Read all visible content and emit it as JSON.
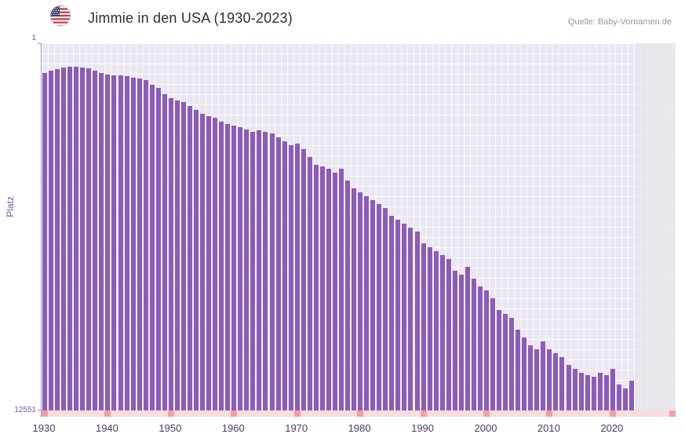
{
  "header": {
    "title": "Jimmie in den USA (1930-2023)",
    "source": "Quelle: Baby-Vornamen.de",
    "flag_icon": "us-flag-icon"
  },
  "chart_data": {
    "type": "bar",
    "title": "Jimmie in den USA (1930-2023)",
    "xlabel": "",
    "ylabel": "Platz",
    "legend": null,
    "grid": true,
    "y_axis": {
      "min": 1,
      "max": 12551,
      "min_label": "1",
      "max_label": "12551",
      "inverted": true,
      "scale": "sqrt",
      "note": "Rang 1 oben, Rang 12551 unten; hoehere Balken = besserer Platz"
    },
    "x_ticks": [
      1930,
      1940,
      1950,
      1960,
      1970,
      1980,
      1990,
      2000,
      2010,
      2020
    ],
    "categories": [
      1930,
      1931,
      1932,
      1933,
      1934,
      1935,
      1936,
      1937,
      1938,
      1939,
      1940,
      1941,
      1942,
      1943,
      1944,
      1945,
      1946,
      1947,
      1948,
      1949,
      1950,
      1951,
      1952,
      1953,
      1954,
      1955,
      1956,
      1957,
      1958,
      1959,
      1960,
      1961,
      1962,
      1963,
      1964,
      1965,
      1966,
      1967,
      1968,
      1969,
      1970,
      1971,
      1972,
      1973,
      1974,
      1975,
      1976,
      1977,
      1978,
      1979,
      1980,
      1981,
      1982,
      1983,
      1984,
      1985,
      1986,
      1987,
      1988,
      1989,
      1990,
      1991,
      1992,
      1993,
      1994,
      1995,
      1996,
      1997,
      1998,
      1999,
      2000,
      2001,
      2002,
      2003,
      2004,
      2005,
      2006,
      2007,
      2008,
      2009,
      2010,
      2011,
      2012,
      2013,
      2014,
      2015,
      2016,
      2017,
      2018,
      2019,
      2020,
      2021,
      2022,
      2023
    ],
    "values": [
      83,
      70,
      62,
      55,
      52,
      52,
      55,
      59,
      70,
      83,
      92,
      96,
      96,
      101,
      111,
      116,
      127,
      161,
      186,
      242,
      281,
      305,
      322,
      367,
      414,
      464,
      496,
      517,
      573,
      608,
      632,
      656,
      693,
      732,
      706,
      732,
      758,
      825,
      895,
      969,
      939,
      1045,
      1205,
      1377,
      1413,
      1467,
      1560,
      1467,
      1755,
      1961,
      2069,
      2179,
      2292,
      2409,
      2527,
      2774,
      2901,
      3032,
      3165,
      3301,
      3727,
      3874,
      4024,
      4177,
      4333,
      4820,
      4987,
      4655,
      5157,
      5507,
      5686,
      6053,
      6624,
      6821,
      7020,
      7634,
      8059,
      8494,
      8716,
      8275,
      8716,
      8941,
      9169,
      9634,
      9870,
      10108,
      10253,
      10350,
      10108,
      10253,
      9870,
      10844,
      11094,
      10596
    ],
    "colors": {
      "bar": "#8c5cb8",
      "plot_background": "#ebe7f2",
      "grid": "#ffffff",
      "axis_band": "#f9dcde",
      "axis_tick": "#f0a0a5",
      "axis_line": "#a98fc6",
      "y_text": "#7b53a6",
      "x_text": "#463f63",
      "title_text": "#2e2d3a",
      "source_text": "#98959f"
    }
  }
}
